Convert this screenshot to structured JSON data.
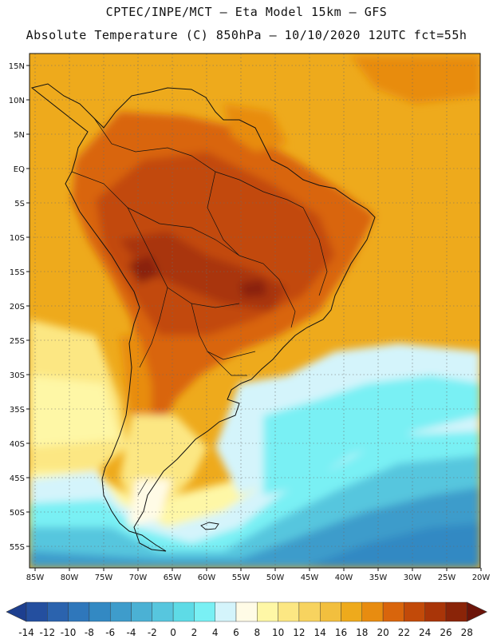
{
  "header": {
    "line1": "CPTEC/INPE/MCT —  Eta Model 15km — GFS",
    "line2": "Absolute Temperature (C) 850hPa — 10/10/2020 12UTC fct=55h"
  },
  "lat_labels": [
    "15N",
    "10N",
    "5N",
    "EQ",
    "5S",
    "10S",
    "15S",
    "20S",
    "25S",
    "30S",
    "35S",
    "40S",
    "45S",
    "50S",
    "55S"
  ],
  "lon_labels": [
    "85W",
    "80W",
    "75W",
    "70W",
    "65W",
    "60W",
    "55W",
    "50W",
    "45W",
    "40W",
    "35W",
    "30W",
    "25W",
    "20W"
  ],
  "colorbar": {
    "labels": [
      "-14",
      "-12",
      "-10",
      "-8",
      "-6",
      "-4",
      "-2",
      "0",
      "2",
      "4",
      "6",
      "8",
      "10",
      "12",
      "14",
      "16",
      "18",
      "20",
      "22",
      "24",
      "26",
      "28"
    ],
    "colors": [
      "#1d3f8f",
      "#244f9f",
      "#2b63ae",
      "#2f77bb",
      "#3389c3",
      "#3e9ccb",
      "#4bb1d4",
      "#57c6de",
      "#5edbe6",
      "#79f0f4",
      "#d4f4fb",
      "#fffbe6",
      "#fef7a6",
      "#fce783",
      "#f7d35f",
      "#f2bf3e",
      "#eeaa1c",
      "#e88c10",
      "#d9650c",
      "#c24a09",
      "#a93508",
      "#8a2408",
      "#6c1409"
    ]
  }
}
